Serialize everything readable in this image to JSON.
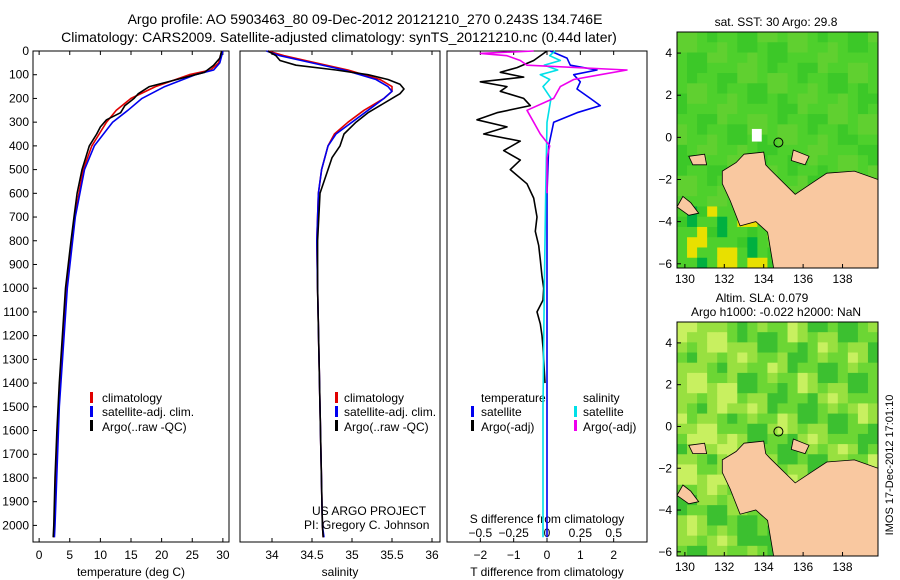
{
  "header": {
    "line1": "Argo profile: AO 5903463_80 09-Dec-2012 20121210_270 0.243S 134.746E",
    "line2": "Climatology: CARS2009. Satellite-adjusted climatology: synTS_20121210.nc (0.44d later)"
  },
  "colors": {
    "climatology": "#e00000",
    "satellite": "#0000ee",
    "argo": "#000000",
    "salinity_satellite": "#00e0e8",
    "salinity_argo": "#ee00ee",
    "land": "#f9c8a0"
  },
  "chart_data": [
    {
      "type": "line",
      "id": "temperature",
      "xlabel": "temperature (deg C)",
      "xlim": [
        -1,
        31
      ],
      "ylim": [
        2070,
        0
      ],
      "xticks": [
        0,
        5,
        10,
        15,
        20,
        25,
        30
      ],
      "xticklabels": [
        "0",
        "5",
        "10",
        "15",
        "20",
        "25",
        "30"
      ],
      "yticks": [
        0,
        100,
        200,
        300,
        400,
        500,
        600,
        700,
        800,
        900,
        1000,
        1100,
        1200,
        1300,
        1400,
        1500,
        1600,
        1700,
        1800,
        1900,
        2000
      ],
      "yticklabels": [
        "0",
        "100",
        "200",
        "300",
        "400",
        "500",
        "600",
        "700",
        "800",
        "900",
        "1000",
        "1100",
        "1200",
        "1300",
        "1400",
        "1500",
        "1600",
        "1700",
        "1800",
        "1900",
        "2000"
      ],
      "legend": [
        "climatology",
        "satellite-adj. clim.",
        "Argo(..raw -QC)"
      ],
      "series": [
        {
          "name": "climatology",
          "color": "#e00000",
          "depth": [
            0,
            50,
            80,
            100,
            150,
            200,
            250,
            300,
            400,
            500,
            700,
            1000,
            1500,
            2000,
            2050
          ],
          "values": [
            29.8,
            29.3,
            28.0,
            24.5,
            19.0,
            15.0,
            12.6,
            11.0,
            8.6,
            7.2,
            5.8,
            4.5,
            3.2,
            2.5,
            2.4
          ]
        },
        {
          "name": "satellite-adj. clim.",
          "color": "#0000ee",
          "depth": [
            0,
            50,
            80,
            100,
            150,
            200,
            250,
            300,
            400,
            500,
            700,
            1000,
            1500,
            2000,
            2050
          ],
          "values": [
            30.0,
            29.5,
            28.5,
            25.5,
            20.5,
            16.8,
            14.5,
            12.0,
            9.0,
            7.4,
            5.9,
            4.6,
            3.3,
            2.6,
            2.5
          ]
        },
        {
          "name": "Argo(..raw -QC)",
          "color": "#000000",
          "depth": [
            0,
            30,
            60,
            90,
            120,
            150,
            180,
            200,
            230,
            260,
            290,
            320,
            350,
            400,
            450,
            500,
            600,
            700,
            800,
            1000,
            1200,
            1400,
            1600,
            1800,
            2000,
            2050
          ],
          "values": [
            29.8,
            29.5,
            28.5,
            27.0,
            22.5,
            18.0,
            16.2,
            15.5,
            14.0,
            13.3,
            11.0,
            10.0,
            9.4,
            8.2,
            7.6,
            7.0,
            6.2,
            5.7,
            5.2,
            4.3,
            3.8,
            3.3,
            2.9,
            2.6,
            2.4,
            2.3
          ]
        }
      ]
    },
    {
      "type": "line",
      "id": "salinity",
      "xlabel": "salinity",
      "xlim": [
        33.6,
        36.1
      ],
      "ylim": [
        2070,
        0
      ],
      "xticks": [
        34,
        34.5,
        35,
        35.5,
        36
      ],
      "xticklabels": [
        "34",
        "34.5",
        "35",
        "35.5",
        "36"
      ],
      "legend": [
        "climatology",
        "satellite-adj. clim.",
        "Argo(..raw -QC)"
      ],
      "series": [
        {
          "name": "climatology",
          "color": "#e00000",
          "depth": [
            0,
            20,
            50,
            80,
            120,
            150,
            170,
            200,
            250,
            300,
            350,
            400,
            500,
            600,
            800,
            1000,
            1500,
            2000,
            2050
          ],
          "values": [
            33.95,
            34.15,
            34.55,
            34.95,
            35.35,
            35.5,
            35.5,
            35.4,
            35.15,
            34.95,
            34.78,
            34.7,
            34.62,
            34.58,
            34.56,
            34.57,
            34.6,
            34.63,
            34.64
          ]
        },
        {
          "name": "satellite-adj. clim.",
          "color": "#0000ee",
          "depth": [
            0,
            20,
            50,
            80,
            120,
            150,
            170,
            200,
            250,
            300,
            350,
            400,
            500,
            600,
            800,
            1000,
            1500,
            2000,
            2050
          ],
          "values": [
            33.93,
            34.1,
            34.5,
            34.9,
            35.3,
            35.45,
            35.5,
            35.4,
            35.2,
            35.0,
            34.8,
            34.7,
            34.62,
            34.58,
            34.56,
            34.57,
            34.6,
            34.63,
            34.65
          ]
        },
        {
          "name": "Argo(..raw -QC)",
          "color": "#000000",
          "depth": [
            0,
            20,
            40,
            60,
            80,
            100,
            120,
            140,
            160,
            180,
            200,
            230,
            260,
            300,
            350,
            400,
            450,
            500,
            600,
            800,
            1000,
            1500,
            2000,
            2050
          ],
          "values": [
            33.95,
            34.05,
            34.1,
            34.3,
            34.8,
            35.2,
            35.45,
            35.6,
            35.65,
            35.6,
            35.5,
            35.35,
            35.2,
            35.05,
            34.9,
            34.85,
            34.75,
            34.7,
            34.6,
            34.57,
            34.57,
            34.6,
            34.63,
            34.64
          ]
        }
      ]
    },
    {
      "type": "line",
      "id": "difference",
      "xlabel": "T difference from climatology",
      "xlabel_top": "S difference from climatology",
      "xlim": [
        -3.0,
        3.0
      ],
      "ylim": [
        2070,
        0
      ],
      "xticks": [
        -2,
        -1,
        0,
        1,
        2
      ],
      "xticklabels": [
        "−2",
        "−1",
        "0",
        "1",
        "2"
      ],
      "s_xticks": [
        -0.5,
        -0.25,
        0,
        0.25,
        0.5
      ],
      "s_xticklabels": [
        "−0.5",
        "−0.25",
        "0",
        "0.25",
        "0.5"
      ],
      "legend_titles": [
        "temperature",
        "salinity"
      ],
      "legend": [
        "satellite",
        "Argo(-adj)",
        "satellite",
        "Argo(-adj)"
      ],
      "series": [
        {
          "name": "satellite",
          "variable": "temperature",
          "color": "#0000ee",
          "depth": [
            0,
            30,
            60,
            80,
            100,
            130,
            160,
            200,
            230,
            260,
            300,
            400,
            600,
            1000,
            1500,
            2050
          ],
          "values": [
            0.1,
            0.6,
            0.7,
            1.5,
            0.8,
            1.0,
            0.9,
            1.3,
            1.6,
            0.9,
            0.2,
            0.05,
            0.0,
            0.0,
            0.0,
            0.0
          ]
        },
        {
          "name": "Argo(-adj)",
          "variable": "temperature",
          "color": "#000000",
          "depth": [
            0,
            40,
            70,
            90,
            110,
            130,
            150,
            170,
            200,
            230,
            260,
            290,
            320,
            350,
            380,
            420,
            460,
            500,
            560,
            620,
            700,
            760,
            820,
            880,
            950,
            1000,
            1050,
            1100,
            1150,
            1200,
            1250,
            1300,
            1350,
            1400
          ],
          "values": [
            0.0,
            -0.4,
            -0.9,
            -1.4,
            -0.7,
            -2.0,
            -1.2,
            -1.4,
            -0.7,
            -0.5,
            -1.5,
            -2.1,
            -1.2,
            -1.9,
            -0.8,
            -1.3,
            -0.8,
            -1.1,
            -0.6,
            -0.4,
            -0.3,
            -0.35,
            -0.25,
            -0.2,
            -0.15,
            -0.1,
            -0.12,
            -0.3,
            -0.2,
            -0.15,
            -0.12,
            -0.1,
            -0.08,
            -0.06
          ]
        },
        {
          "name": "satellite",
          "variable": "salinity",
          "color": "#00e0e8",
          "depth": [
            0,
            20,
            40,
            60,
            80,
            100,
            120,
            150,
            200,
            300,
            600,
            1000,
            1500,
            2050
          ],
          "values": [
            0.06,
            0.02,
            0.1,
            -0.02,
            0.08,
            -0.05,
            0.02,
            -0.03,
            0.03,
            0.0,
            -0.01,
            -0.02,
            -0.03,
            -0.03
          ]
        },
        {
          "name": "Argo(-adj)",
          "variable": "salinity",
          "color": "#ee00ee",
          "depth": [
            0,
            10,
            20,
            40,
            60,
            80,
            100,
            120,
            150,
            200,
            250,
            300,
            350,
            400,
            450,
            500,
            600
          ],
          "values": [
            -0.1,
            -0.5,
            -0.3,
            -0.2,
            -0.15,
            0.6,
            0.4,
            0.2,
            0.1,
            0.05,
            -0.15,
            -0.1,
            -0.05,
            0.02,
            0.0,
            0.0,
            0.0
          ]
        }
      ]
    }
  ],
  "maps": {
    "top_title": "sat. SST: 30 Argo: 29.8",
    "bottom_title_1": "Altim. SLA: 0.079",
    "bottom_title_2": "Argo h1000: -0.022 h2000: NaN",
    "lon_range": [
      129.6,
      139.8
    ],
    "lat_range": [
      -6.2,
      5.0
    ],
    "lon_ticks": [
      130,
      132,
      134,
      136,
      138
    ],
    "lon_ticklabels": [
      "130",
      "132",
      "134",
      "136",
      "138"
    ],
    "lat_ticks": [
      4,
      2,
      0,
      -2,
      -4,
      -6
    ],
    "lat_ticklabels": [
      "4",
      "2",
      "0",
      "−2",
      "−4",
      "−6"
    ],
    "profile_location": {
      "lon": 134.746,
      "lat": -0.243
    }
  },
  "credits": {
    "project": "US ARGO PROJECT",
    "pi": "PI: Gregory C. Johnson",
    "footer": "IMOS 17-Dec-2012 17:01:10"
  }
}
